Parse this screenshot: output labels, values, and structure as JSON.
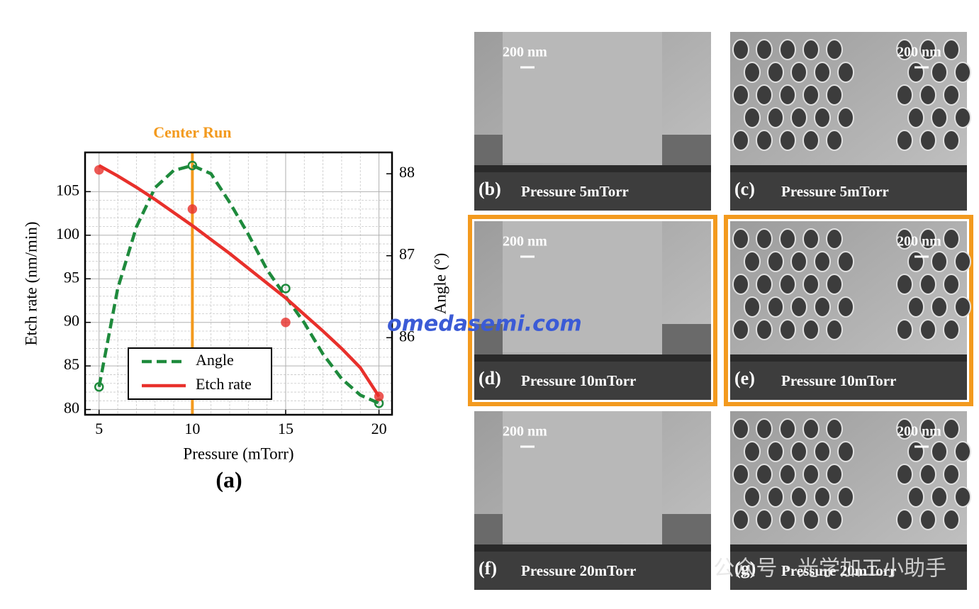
{
  "chart_data": {
    "type": "line",
    "annotation": "Center Run",
    "annotation_x": 10,
    "annotation_color": "#f39a1e",
    "xlabel": "Pressure (mTorr)",
    "ylabel": "Etch rate (nm/min)",
    "y2label": "Angle (°)",
    "xlim": [
      4.25,
      20.7
    ],
    "xticks": [
      5,
      10,
      15,
      20
    ],
    "ylim": [
      79.4,
      109.5
    ],
    "yticks": [
      80,
      85,
      90,
      95,
      100,
      105
    ],
    "y2lim": [
      85.06,
      88.26
    ],
    "y2ticks": [
      86,
      87,
      88
    ],
    "grid": true,
    "minor_grid": true,
    "legend": "lower left",
    "series": [
      {
        "name": "Angle",
        "color": "#1e8a3c",
        "dash": true,
        "axis": "y2",
        "x": [
          5,
          6,
          7,
          8,
          9,
          10,
          11,
          12,
          13,
          14,
          15,
          16,
          17,
          18,
          19,
          20
        ],
        "values": [
          85.4,
          86.6,
          87.35,
          87.83,
          88.04,
          88.1,
          88.0,
          87.65,
          87.26,
          86.83,
          86.5,
          86.18,
          85.8,
          85.5,
          85.3,
          85.2
        ],
        "markers": {
          "x": [
            5,
            10,
            15,
            20
          ],
          "values": [
            85.4,
            88.1,
            86.6,
            85.2
          ]
        }
      },
      {
        "name": "Etch rate",
        "color": "#e8302b",
        "dash": false,
        "axis": "y",
        "x": [
          5,
          6,
          7,
          8,
          9,
          10,
          11,
          12,
          13,
          14,
          15,
          16,
          17,
          18,
          19,
          20
        ],
        "values": [
          108,
          106.8,
          105.5,
          104.1,
          102.6,
          101.1,
          99.5,
          97.9,
          96.2,
          94.5,
          92.8,
          90.9,
          89,
          87,
          84.8,
          81.5
        ],
        "markers": {
          "x": [
            5,
            10,
            15,
            20
          ],
          "values": [
            107.5,
            103,
            90,
            81.5
          ]
        }
      }
    ]
  },
  "panel_label": "(a)",
  "panels": [
    {
      "label": "(b)",
      "caption": "Pressure 5mTorr",
      "scale": "200 nm",
      "kind": "trench",
      "highlight": false
    },
    {
      "label": "(c)",
      "caption": "Pressure 5mTorr",
      "scale": "200 nm",
      "kind": "holes",
      "highlight": false
    },
    {
      "label": "(d)",
      "caption": "Pressure 10mTorr",
      "scale": "200 nm",
      "kind": "trench",
      "highlight": true
    },
    {
      "label": "(e)",
      "caption": "Pressure 10mTorr",
      "scale": "200 nm",
      "kind": "holes",
      "highlight": true
    },
    {
      "label": "(f)",
      "caption": "Pressure 20mTorr",
      "scale": "200 nm",
      "kind": "trench",
      "highlight": false
    },
    {
      "label": "(g)",
      "caption": "Pressure 20mTorr",
      "scale": "200 nm",
      "kind": "holes",
      "highlight": false
    }
  ],
  "watermarks": [
    "omedasemi.com",
    "公众号 · 光学加工小助手"
  ]
}
